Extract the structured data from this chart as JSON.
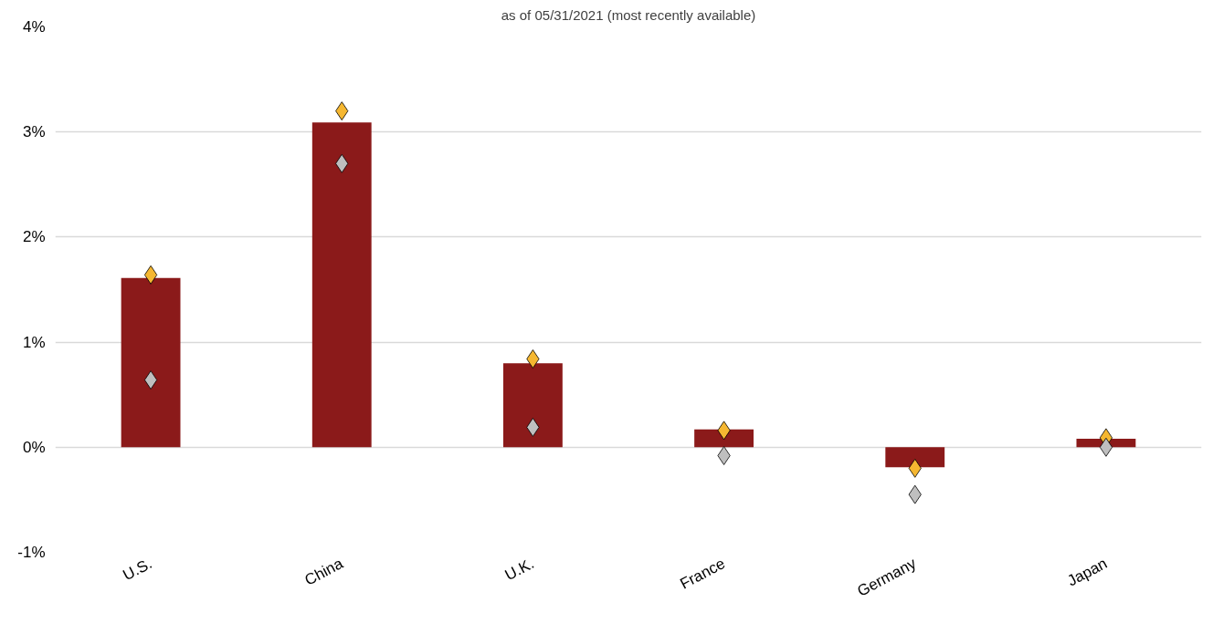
{
  "chart_data": {
    "type": "bar",
    "subtitle": "as of 05/31/2021 (most recently available)",
    "categories": [
      "U.S.",
      "China",
      "U.K.",
      "France",
      "Germany",
      "Japan"
    ],
    "series": [
      {
        "color": "#8b1a1a",
        "values": [
          1.61,
          3.09,
          0.8,
          0.17,
          -0.19,
          0.08
        ]
      },
      {
        "type": "scatter",
        "color": "#f5b731",
        "values": [
          1.64,
          3.2,
          0.84,
          0.16,
          -0.2,
          0.09
        ]
      },
      {
        "type": "scatter",
        "color": "#bfbfbf",
        "values": [
          0.64,
          2.7,
          0.19,
          -0.08,
          -0.45,
          0.0
        ]
      }
    ],
    "ylim": [
      -1,
      4
    ],
    "yticks": [
      {
        "value": -1,
        "label": "-1%"
      },
      {
        "value": 0,
        "label": "0%"
      },
      {
        "value": 1,
        "label": "1%"
      },
      {
        "value": 2,
        "label": "2%"
      },
      {
        "value": 3,
        "label": "3%"
      },
      {
        "value": 4,
        "label": "4%"
      }
    ],
    "grid": "y",
    "marker": "diamond"
  }
}
